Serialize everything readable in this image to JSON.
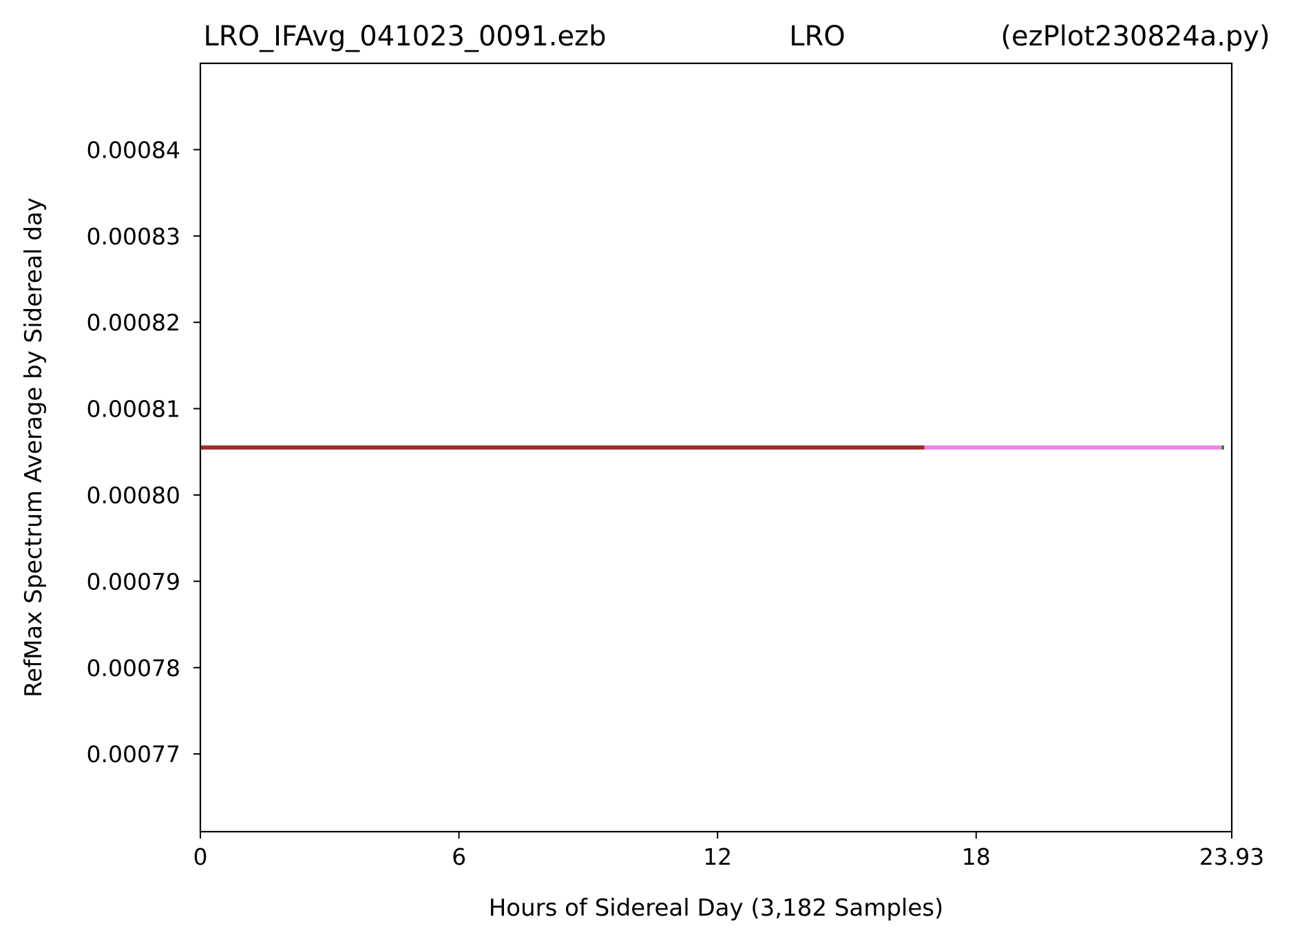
{
  "chart_data": {
    "type": "line",
    "title": {
      "left": "LRO_IFAvg_041023_0091.ezb",
      "center": "LRO",
      "right": "(ezPlot230824a.py)"
    },
    "xlabel": "Hours of Sidereal Day  (3,182 Samples)",
    "ylabel": "RefMax Spectrum Average by Sidereal day",
    "xlim": [
      0,
      23.93
    ],
    "ylim": [
      0.000761,
      0.00085
    ],
    "x_ticks": [
      {
        "value": 0,
        "label": "0"
      },
      {
        "value": 6,
        "label": "6"
      },
      {
        "value": 12,
        "label": "12"
      },
      {
        "value": 18,
        "label": "18"
      },
      {
        "value": 23.93,
        "label": "23.93"
      }
    ],
    "y_ticks": [
      {
        "value": 0.00077,
        "label": "0.00077"
      },
      {
        "value": 0.00078,
        "label": "0.00078"
      },
      {
        "value": 0.00079,
        "label": "0.00079"
      },
      {
        "value": 0.0008,
        "label": "0.00080"
      },
      {
        "value": 0.00081,
        "label": "0.00081"
      },
      {
        "value": 0.00082,
        "label": "0.00082"
      },
      {
        "value": 0.00083,
        "label": "0.00083"
      },
      {
        "value": 0.00084,
        "label": "0.00084"
      }
    ],
    "grid": false,
    "segments": [
      {
        "x": [
          0,
          16.8
        ],
        "y": [
          0.0008055,
          0.0008055
        ],
        "color": "#a52a2a"
      },
      {
        "x": [
          16.8,
          23.7
        ],
        "y": [
          0.0008055,
          0.0008055
        ],
        "color": "#ee82ee"
      },
      {
        "x": [
          23.7,
          23.75
        ],
        "y": [
          0.0008055,
          0.0008055
        ],
        "color": "#008000"
      }
    ]
  }
}
